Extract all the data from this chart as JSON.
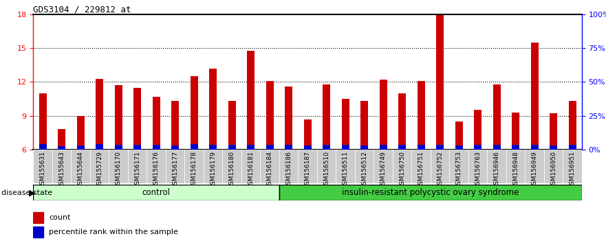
{
  "title": "GDS3104 / 229812_at",
  "samples": [
    "GSM155631",
    "GSM155643",
    "GSM155644",
    "GSM155729",
    "GSM156170",
    "GSM156171",
    "GSM156176",
    "GSM156177",
    "GSM156178",
    "GSM156179",
    "GSM156180",
    "GSM156181",
    "GSM156184",
    "GSM156186",
    "GSM156187",
    "GSM156510",
    "GSM156511",
    "GSM156512",
    "GSM156749",
    "GSM156750",
    "GSM156751",
    "GSM156752",
    "GSM156753",
    "GSM156763",
    "GSM156946",
    "GSM156948",
    "GSM156949",
    "GSM156950",
    "GSM156951"
  ],
  "red_values": [
    11.0,
    7.8,
    9.0,
    12.3,
    11.75,
    11.5,
    10.7,
    10.3,
    12.5,
    13.2,
    10.3,
    14.8,
    12.1,
    11.6,
    8.7,
    11.8,
    10.5,
    10.3,
    12.2,
    11.0,
    12.1,
    18.0,
    8.5,
    9.5,
    11.8,
    9.3,
    15.5,
    9.2,
    10.3
  ],
  "blue_values": [
    0.45,
    0.3,
    0.35,
    0.45,
    0.38,
    0.42,
    0.38,
    0.35,
    0.45,
    0.4,
    0.38,
    0.42,
    0.4,
    0.4,
    0.32,
    0.38,
    0.4,
    0.35,
    0.4,
    0.38,
    0.42,
    0.4,
    0.32,
    0.38,
    0.4,
    0.38,
    0.4,
    0.35,
    0.4
  ],
  "control_count": 13,
  "disease_count": 16,
  "ymin": 6,
  "ymax": 18,
  "yticks_left": [
    6,
    9,
    12,
    15,
    18
  ],
  "yticks_right": [
    0,
    25,
    50,
    75,
    100
  ],
  "bar_color_red": "#cc0000",
  "bar_color_blue": "#0000cc",
  "control_color": "#ccffcc",
  "disease_color": "#44cc44",
  "tick_label_bg": "#cccccc",
  "title_fontsize": 9,
  "tick_fontsize": 6.5,
  "label_fontsize": 8
}
